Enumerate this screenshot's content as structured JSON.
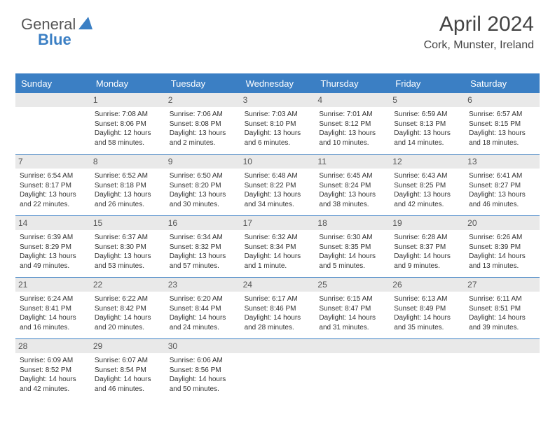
{
  "brand": {
    "part1": "General",
    "part2": "Blue",
    "tri_color": "#3b7fc4"
  },
  "title": "April 2024",
  "location": "Cork, Munster, Ireland",
  "colors": {
    "accent": "#3b7fc4",
    "numbar": "#e9e9e9",
    "text": "#333333",
    "bg": "#ffffff"
  },
  "day_labels": [
    "Sunday",
    "Monday",
    "Tuesday",
    "Wednesday",
    "Thursday",
    "Friday",
    "Saturday"
  ],
  "weeks": [
    [
      {
        "num": "",
        "sunrise": "",
        "sunset": "",
        "daylight1": "",
        "daylight2": ""
      },
      {
        "num": "1",
        "sunrise": "Sunrise: 7:08 AM",
        "sunset": "Sunset: 8:06 PM",
        "daylight1": "Daylight: 12 hours",
        "daylight2": "and 58 minutes."
      },
      {
        "num": "2",
        "sunrise": "Sunrise: 7:06 AM",
        "sunset": "Sunset: 8:08 PM",
        "daylight1": "Daylight: 13 hours",
        "daylight2": "and 2 minutes."
      },
      {
        "num": "3",
        "sunrise": "Sunrise: 7:03 AM",
        "sunset": "Sunset: 8:10 PM",
        "daylight1": "Daylight: 13 hours",
        "daylight2": "and 6 minutes."
      },
      {
        "num": "4",
        "sunrise": "Sunrise: 7:01 AM",
        "sunset": "Sunset: 8:12 PM",
        "daylight1": "Daylight: 13 hours",
        "daylight2": "and 10 minutes."
      },
      {
        "num": "5",
        "sunrise": "Sunrise: 6:59 AM",
        "sunset": "Sunset: 8:13 PM",
        "daylight1": "Daylight: 13 hours",
        "daylight2": "and 14 minutes."
      },
      {
        "num": "6",
        "sunrise": "Sunrise: 6:57 AM",
        "sunset": "Sunset: 8:15 PM",
        "daylight1": "Daylight: 13 hours",
        "daylight2": "and 18 minutes."
      }
    ],
    [
      {
        "num": "7",
        "sunrise": "Sunrise: 6:54 AM",
        "sunset": "Sunset: 8:17 PM",
        "daylight1": "Daylight: 13 hours",
        "daylight2": "and 22 minutes."
      },
      {
        "num": "8",
        "sunrise": "Sunrise: 6:52 AM",
        "sunset": "Sunset: 8:18 PM",
        "daylight1": "Daylight: 13 hours",
        "daylight2": "and 26 minutes."
      },
      {
        "num": "9",
        "sunrise": "Sunrise: 6:50 AM",
        "sunset": "Sunset: 8:20 PM",
        "daylight1": "Daylight: 13 hours",
        "daylight2": "and 30 minutes."
      },
      {
        "num": "10",
        "sunrise": "Sunrise: 6:48 AM",
        "sunset": "Sunset: 8:22 PM",
        "daylight1": "Daylight: 13 hours",
        "daylight2": "and 34 minutes."
      },
      {
        "num": "11",
        "sunrise": "Sunrise: 6:45 AM",
        "sunset": "Sunset: 8:24 PM",
        "daylight1": "Daylight: 13 hours",
        "daylight2": "and 38 minutes."
      },
      {
        "num": "12",
        "sunrise": "Sunrise: 6:43 AM",
        "sunset": "Sunset: 8:25 PM",
        "daylight1": "Daylight: 13 hours",
        "daylight2": "and 42 minutes."
      },
      {
        "num": "13",
        "sunrise": "Sunrise: 6:41 AM",
        "sunset": "Sunset: 8:27 PM",
        "daylight1": "Daylight: 13 hours",
        "daylight2": "and 46 minutes."
      }
    ],
    [
      {
        "num": "14",
        "sunrise": "Sunrise: 6:39 AM",
        "sunset": "Sunset: 8:29 PM",
        "daylight1": "Daylight: 13 hours",
        "daylight2": "and 49 minutes."
      },
      {
        "num": "15",
        "sunrise": "Sunrise: 6:37 AM",
        "sunset": "Sunset: 8:30 PM",
        "daylight1": "Daylight: 13 hours",
        "daylight2": "and 53 minutes."
      },
      {
        "num": "16",
        "sunrise": "Sunrise: 6:34 AM",
        "sunset": "Sunset: 8:32 PM",
        "daylight1": "Daylight: 13 hours",
        "daylight2": "and 57 minutes."
      },
      {
        "num": "17",
        "sunrise": "Sunrise: 6:32 AM",
        "sunset": "Sunset: 8:34 PM",
        "daylight1": "Daylight: 14 hours",
        "daylight2": "and 1 minute."
      },
      {
        "num": "18",
        "sunrise": "Sunrise: 6:30 AM",
        "sunset": "Sunset: 8:35 PM",
        "daylight1": "Daylight: 14 hours",
        "daylight2": "and 5 minutes."
      },
      {
        "num": "19",
        "sunrise": "Sunrise: 6:28 AM",
        "sunset": "Sunset: 8:37 PM",
        "daylight1": "Daylight: 14 hours",
        "daylight2": "and 9 minutes."
      },
      {
        "num": "20",
        "sunrise": "Sunrise: 6:26 AM",
        "sunset": "Sunset: 8:39 PM",
        "daylight1": "Daylight: 14 hours",
        "daylight2": "and 13 minutes."
      }
    ],
    [
      {
        "num": "21",
        "sunrise": "Sunrise: 6:24 AM",
        "sunset": "Sunset: 8:41 PM",
        "daylight1": "Daylight: 14 hours",
        "daylight2": "and 16 minutes."
      },
      {
        "num": "22",
        "sunrise": "Sunrise: 6:22 AM",
        "sunset": "Sunset: 8:42 PM",
        "daylight1": "Daylight: 14 hours",
        "daylight2": "and 20 minutes."
      },
      {
        "num": "23",
        "sunrise": "Sunrise: 6:20 AM",
        "sunset": "Sunset: 8:44 PM",
        "daylight1": "Daylight: 14 hours",
        "daylight2": "and 24 minutes."
      },
      {
        "num": "24",
        "sunrise": "Sunrise: 6:17 AM",
        "sunset": "Sunset: 8:46 PM",
        "daylight1": "Daylight: 14 hours",
        "daylight2": "and 28 minutes."
      },
      {
        "num": "25",
        "sunrise": "Sunrise: 6:15 AM",
        "sunset": "Sunset: 8:47 PM",
        "daylight1": "Daylight: 14 hours",
        "daylight2": "and 31 minutes."
      },
      {
        "num": "26",
        "sunrise": "Sunrise: 6:13 AM",
        "sunset": "Sunset: 8:49 PM",
        "daylight1": "Daylight: 14 hours",
        "daylight2": "and 35 minutes."
      },
      {
        "num": "27",
        "sunrise": "Sunrise: 6:11 AM",
        "sunset": "Sunset: 8:51 PM",
        "daylight1": "Daylight: 14 hours",
        "daylight2": "and 39 minutes."
      }
    ],
    [
      {
        "num": "28",
        "sunrise": "Sunrise: 6:09 AM",
        "sunset": "Sunset: 8:52 PM",
        "daylight1": "Daylight: 14 hours",
        "daylight2": "and 42 minutes."
      },
      {
        "num": "29",
        "sunrise": "Sunrise: 6:07 AM",
        "sunset": "Sunset: 8:54 PM",
        "daylight1": "Daylight: 14 hours",
        "daylight2": "and 46 minutes."
      },
      {
        "num": "30",
        "sunrise": "Sunrise: 6:06 AM",
        "sunset": "Sunset: 8:56 PM",
        "daylight1": "Daylight: 14 hours",
        "daylight2": "and 50 minutes."
      },
      {
        "num": "",
        "sunrise": "",
        "sunset": "",
        "daylight1": "",
        "daylight2": ""
      },
      {
        "num": "",
        "sunrise": "",
        "sunset": "",
        "daylight1": "",
        "daylight2": ""
      },
      {
        "num": "",
        "sunrise": "",
        "sunset": "",
        "daylight1": "",
        "daylight2": ""
      },
      {
        "num": "",
        "sunrise": "",
        "sunset": "",
        "daylight1": "",
        "daylight2": ""
      }
    ]
  ]
}
